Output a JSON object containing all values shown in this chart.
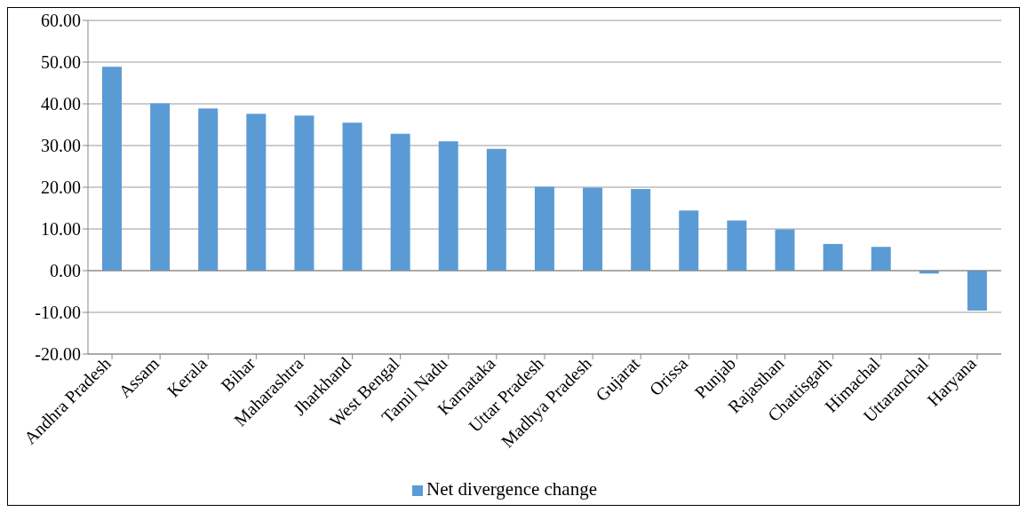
{
  "chart_data": {
    "type": "bar",
    "categories": [
      "Andhra Pradesh",
      "Assam",
      "Kerala",
      "Bihar",
      "Maharashtra",
      "Jharkhand",
      "West Bengal",
      "Tamil Nadu",
      "Karnataka",
      "Uttar Pradesh",
      "Madhya Pradesh",
      "Gujarat",
      "Orissa",
      "Punjab",
      "Rajasthan",
      "Chattisgarh",
      "Himachal",
      "Uttaranchal",
      "Haryana"
    ],
    "series": [
      {
        "name": "Net divergence change",
        "color": "#5b9bd5",
        "values": [
          48.9,
          40.1,
          38.9,
          37.6,
          37.2,
          35.5,
          32.8,
          31.0,
          29.2,
          20.1,
          19.9,
          19.6,
          14.4,
          12.0,
          9.9,
          6.4,
          5.7,
          -0.7,
          -9.6
        ]
      }
    ],
    "ylim": [
      -20,
      60
    ],
    "yticks": [
      {
        "value": -20,
        "label": "-20.00"
      },
      {
        "value": -10,
        "label": "-10.00"
      },
      {
        "value": 0,
        "label": "0.00"
      },
      {
        "value": 10,
        "label": "10.00"
      },
      {
        "value": 20,
        "label": "20.00"
      },
      {
        "value": 30,
        "label": "30.00"
      },
      {
        "value": 40,
        "label": "40.00"
      },
      {
        "value": 50,
        "label": "50.00"
      },
      {
        "value": 60,
        "label": "60.00"
      }
    ],
    "grid": "y",
    "legend": "bottom"
  }
}
